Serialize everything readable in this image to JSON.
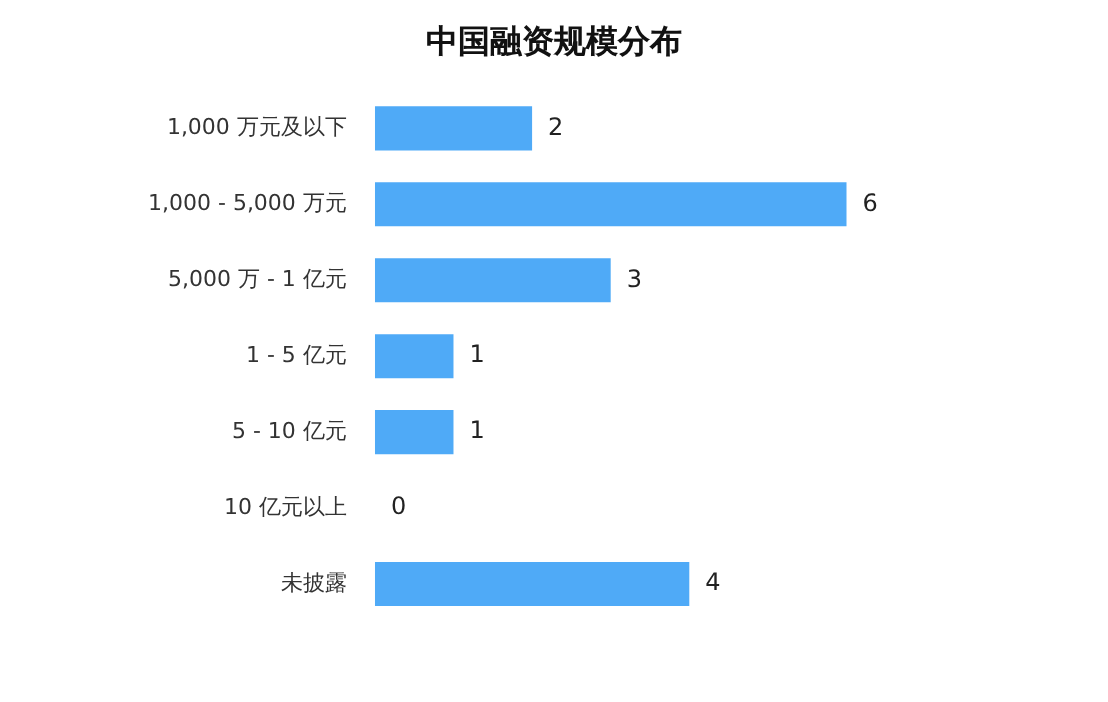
{
  "chart_data": {
    "type": "bar",
    "title": "中国融资规模分布",
    "orientation": "horizontal",
    "tick_labels": "y",
    "data_labels": true,
    "legend": false,
    "categories": [
      "1,000 万元及以下",
      "1,000 - 5,000 万元",
      "5,000 万 - 1 亿元",
      "1 - 5 亿元",
      "5 - 10 亿元",
      "10 亿元以上",
      "未披露"
    ],
    "series": [
      {
        "color": "#4faaf7",
        "values": [
          2,
          6,
          3,
          1,
          1,
          0,
          4
        ]
      }
    ]
  }
}
